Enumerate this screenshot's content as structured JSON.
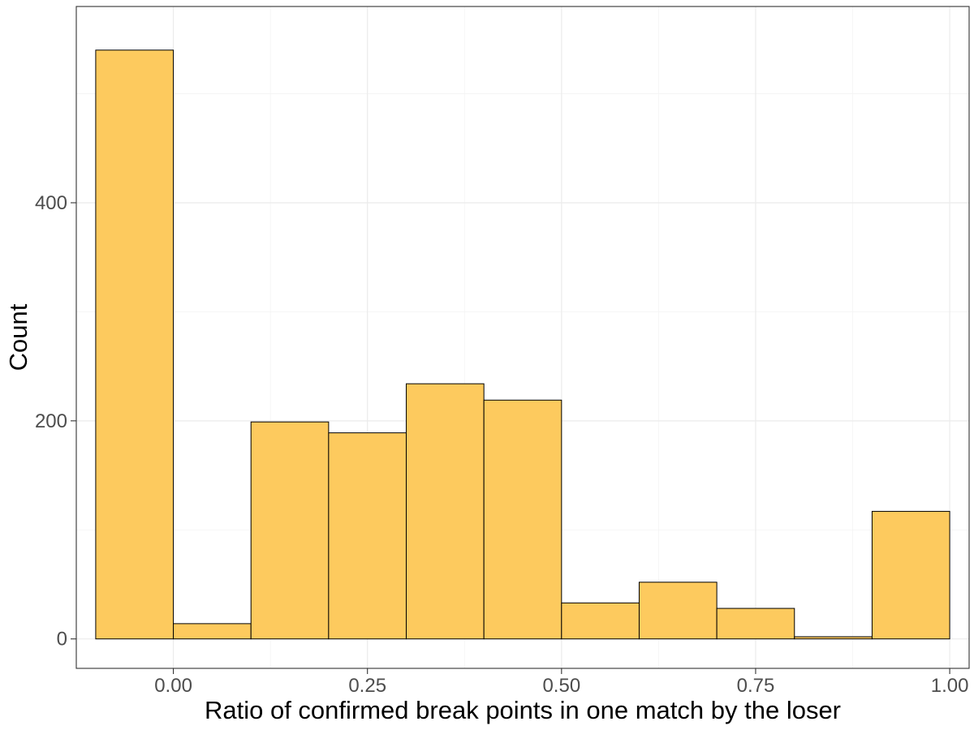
{
  "chart_data": {
    "type": "bar",
    "histogram": true,
    "title": "",
    "xlabel": "Ratio of confirmed break points in one match by the loser",
    "ylabel": "Count",
    "bins": [
      {
        "x0": -0.1,
        "x1": 0.0,
        "count": 540
      },
      {
        "x0": 0.0,
        "x1": 0.1,
        "count": 14
      },
      {
        "x0": 0.1,
        "x1": 0.2,
        "count": 199
      },
      {
        "x0": 0.2,
        "x1": 0.3,
        "count": 189
      },
      {
        "x0": 0.3,
        "x1": 0.4,
        "count": 234
      },
      {
        "x0": 0.4,
        "x1": 0.5,
        "count": 219
      },
      {
        "x0": 0.5,
        "x1": 0.6,
        "count": 33
      },
      {
        "x0": 0.6,
        "x1": 0.7,
        "count": 52
      },
      {
        "x0": 0.7,
        "x1": 0.8,
        "count": 28
      },
      {
        "x0": 0.8,
        "x1": 0.9,
        "count": 2
      },
      {
        "x0": 0.9,
        "x1": 1.0,
        "count": 117
      }
    ],
    "x_ticks": [
      0.0,
      0.25,
      0.5,
      0.75,
      1.0
    ],
    "x_tick_labels": [
      "0.00",
      "0.25",
      "0.50",
      "0.75",
      "1.00"
    ],
    "y_ticks": [
      0,
      200,
      400
    ],
    "y_tick_labels": [
      "0",
      "200",
      "400"
    ],
    "xlim": [
      -0.125,
      1.025
    ],
    "ylim": [
      -27,
      580
    ],
    "grid": true,
    "legend": "none",
    "colors": {
      "bar_fill": "#FDCA5E",
      "bar_stroke": "#000000",
      "grid": "#EBEBEB",
      "border": "#333333"
    }
  }
}
